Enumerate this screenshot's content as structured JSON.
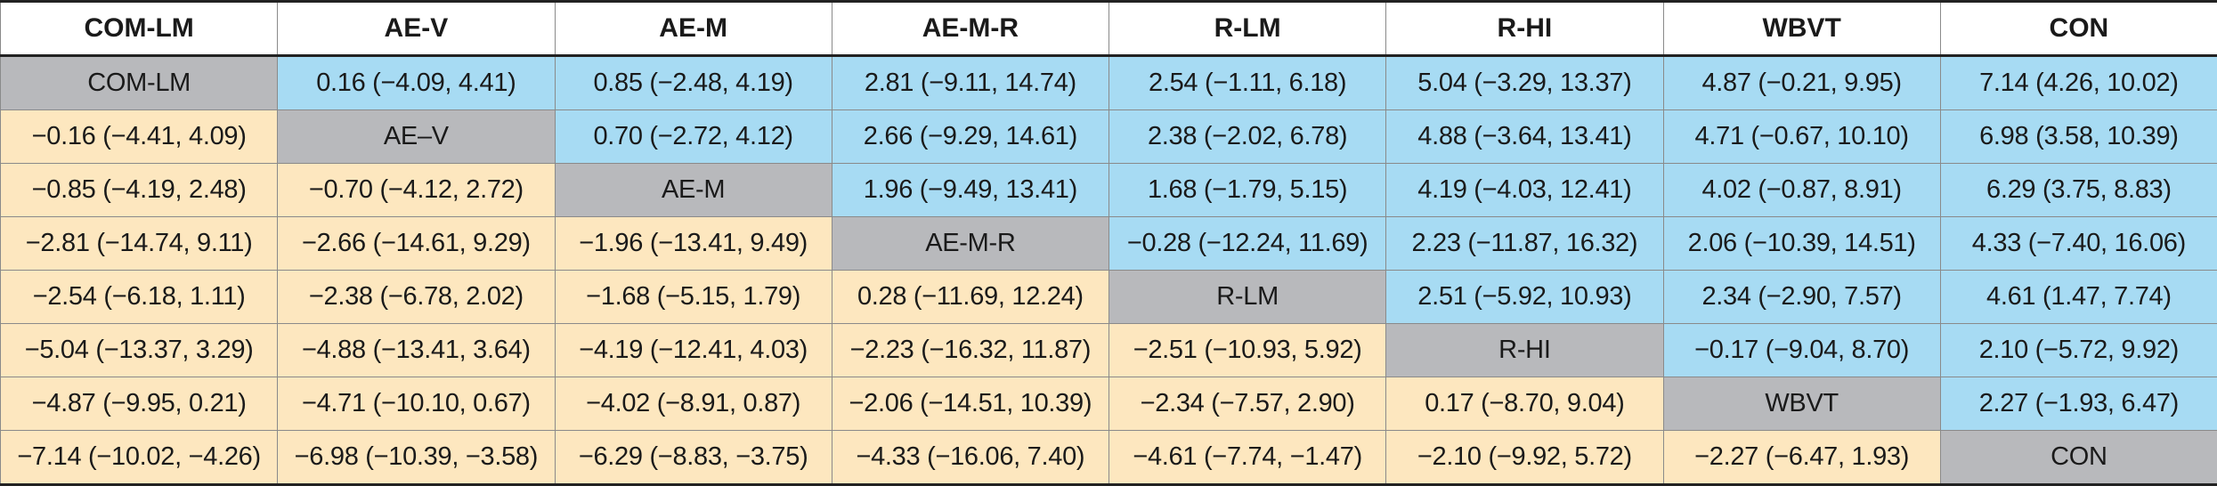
{
  "colors": {
    "upper_triangle": "#a7dbf3",
    "lower_triangle": "#fde7bf",
    "diagonal": "#b8b9bc"
  },
  "table": {
    "headers": [
      "COM-LM",
      "AE-V",
      "AE-M",
      "AE-M-R",
      "R-LM",
      "R-HI",
      "WBVT",
      "CON"
    ],
    "rows": [
      [
        "COM-LM",
        "0.16 (−4.09, 4.41)",
        "0.85 (−2.48, 4.19)",
        "2.81 (−9.11, 14.74)",
        "2.54 (−1.11, 6.18)",
        "5.04 (−3.29, 13.37)",
        "4.87 (−0.21, 9.95)",
        "7.14 (4.26, 10.02)"
      ],
      [
        "−0.16 (−4.41,  4.09)",
        "AE–V",
        "0.70 (−2.72, 4.12)",
        "2.66 (−9.29, 14.61)",
        "2.38 (−2.02, 6.78)",
        "4.88 (−3.64, 13.41)",
        "4.71 (−0.67, 10.10)",
        "6.98 (3.58, 10.39)"
      ],
      [
        "−0.85 (−4.19, 2.48)",
        "−0.70 (−4.12, 2.72)",
        "AE-M",
        "1.96 (−9.49, 13.41)",
        "1.68 (−1.79, 5.15)",
        "4.19 (−4.03, 12.41)",
        "4.02 (−0.87, 8.91)",
        "6.29 (3.75, 8.83)"
      ],
      [
        "−2.81 (−14.74, 9.11)",
        "−2.66 (−14.61, 9.29)",
        "−1.96 (−13.41, 9.49)",
        "AE-M-R",
        "−0.28 (−12.24, 11.69)",
        "2.23 (−11.87, 16.32)",
        "2.06 (−10.39, 14.51)",
        "4.33 (−7.40, 16.06)"
      ],
      [
        "−2.54 (−6.18, 1.11)",
        "−2.38 (−6.78, 2.02)",
        "−1.68 (−5.15, 1.79)",
        "0.28 (−11.69, 12.24)",
        "R-LM",
        "2.51 (−5.92, 10.93)",
        "2.34 (−2.90, 7.57)",
        "4.61 (1.47, 7.74)"
      ],
      [
        "−5.04 (−13.37, 3.29)",
        "−4.88 (−13.41, 3.64)",
        "−4.19 (−12.41, 4.03)",
        "−2.23 (−16.32, 11.87)",
        "−2.51 (−10.93, 5.92)",
        "R-HI",
        "−0.17 (−9.04, 8.70)",
        "2.10 (−5.72, 9.92)"
      ],
      [
        "−4.87 (−9.95, 0.21)",
        "−4.71 (−10.10, 0.67)",
        "−4.02 (−8.91, 0.87)",
        "−2.06 (−14.51, 10.39)",
        "−2.34 (−7.57, 2.90)",
        "0.17 (−8.70, 9.04)",
        "WBVT",
        "2.27 (−1.93, 6.47)"
      ],
      [
        "−7.14 (−10.02,  −4.26)",
        "−6.98 (−10.39,  −3.58)",
        "−6.29 (−8.83,  −3.75)",
        "−4.33 (−16.06, 7.40)",
        "−4.61 (−7.74, −1.47)",
        "−2.10 (−9.92, 5.72)",
        "−2.27 (−6.47, 1.93)",
        "CON"
      ]
    ]
  }
}
